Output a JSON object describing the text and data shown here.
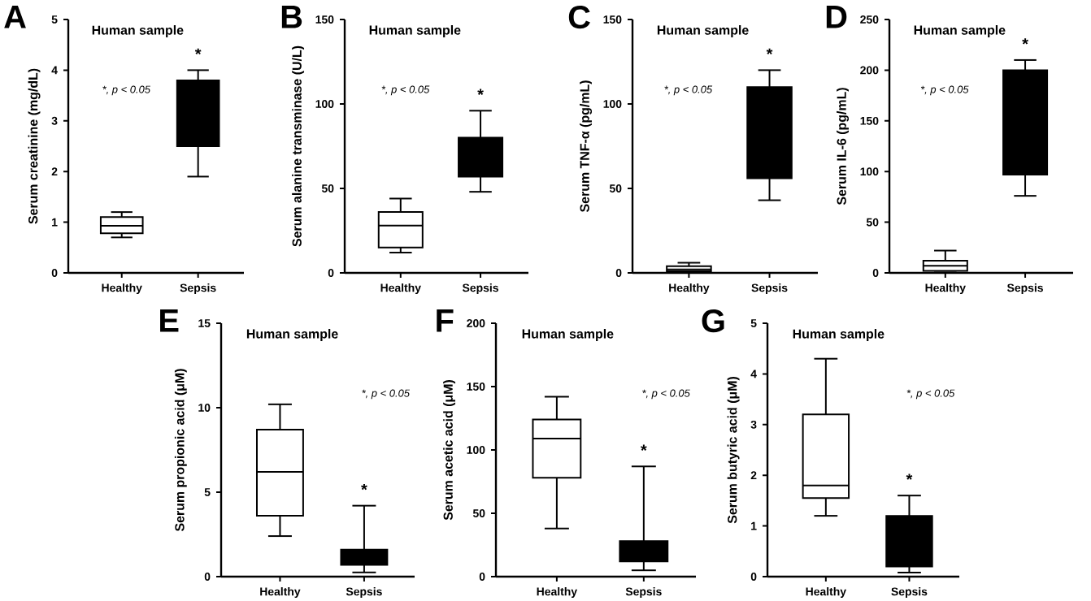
{
  "chart_data": [
    {
      "type": "box",
      "title": "A",
      "subtitle": "Human sample",
      "ylabel": "Serum creatinine (mg/dL)",
      "categories": [
        "Healthy",
        "Sepsis"
      ],
      "colors": [
        "#ffffff",
        "#000000"
      ],
      "ylim": [
        0,
        5
      ],
      "yticks": [
        0,
        1,
        2,
        3,
        4,
        5
      ],
      "boxes": [
        {
          "low": 0.7,
          "q1": 0.78,
          "median": 0.93,
          "q3": 1.1,
          "high": 1.2
        },
        {
          "low": 1.9,
          "q1": 2.5,
          "median": 3.2,
          "q3": 3.8,
          "high": 4.0
        }
      ],
      "annotations": [
        "*, p < 0.05",
        "*"
      ]
    },
    {
      "type": "box",
      "title": "B",
      "subtitle": "Human sample",
      "ylabel": "Serum alanine transminase (U/L)",
      "categories": [
        "Healthy",
        "Sepsis"
      ],
      "colors": [
        "#ffffff",
        "#000000"
      ],
      "ylim": [
        0,
        150
      ],
      "yticks": [
        0,
        50,
        100,
        150
      ],
      "boxes": [
        {
          "low": 12,
          "q1": 15,
          "median": 28,
          "q3": 36,
          "high": 44
        },
        {
          "low": 48,
          "q1": 57,
          "median": 68,
          "q3": 80,
          "high": 96
        }
      ],
      "annotations": [
        "*, p < 0.05",
        "*"
      ]
    },
    {
      "type": "box",
      "title": "C",
      "subtitle": "Human sample",
      "ylabel": "Serum TNF-α (pg/mL)",
      "categories": [
        "Healthy",
        "Sepsis"
      ],
      "colors": [
        "#ffffff",
        "#000000"
      ],
      "ylim": [
        0,
        150
      ],
      "yticks": [
        0,
        50,
        100,
        150
      ],
      "boxes": [
        {
          "low": 0,
          "q1": 1,
          "median": 2,
          "q3": 4,
          "high": 6
        },
        {
          "low": 43,
          "q1": 56,
          "median": 88,
          "q3": 110,
          "high": 120
        }
      ],
      "annotations": [
        "*, p < 0.05",
        "*"
      ]
    },
    {
      "type": "box",
      "title": "D",
      "subtitle": "Human sample",
      "ylabel": "Serum IL-6 (pg/mL)",
      "categories": [
        "Healthy",
        "Sepsis"
      ],
      "colors": [
        "#ffffff",
        "#000000"
      ],
      "ylim": [
        0,
        250
      ],
      "yticks": [
        0,
        50,
        100,
        150,
        200,
        250
      ],
      "boxes": [
        {
          "low": 2,
          "q1": 2,
          "median": 7,
          "q3": 12,
          "high": 22
        },
        {
          "low": 76,
          "q1": 97,
          "median": 155,
          "q3": 200,
          "high": 210
        }
      ],
      "annotations": [
        "*, p < 0.05",
        "*"
      ]
    },
    {
      "type": "box",
      "title": "E",
      "subtitle": "Human sample",
      "ylabel": "Serum propionic acid (μM)",
      "categories": [
        "Healthy",
        "Sepsis"
      ],
      "colors": [
        "#ffffff",
        "#000000"
      ],
      "ylim": [
        0,
        15
      ],
      "yticks": [
        0,
        5,
        10,
        15
      ],
      "boxes": [
        {
          "low": 2.4,
          "q1": 3.6,
          "median": 6.2,
          "q3": 8.7,
          "high": 10.2
        },
        {
          "low": 0.25,
          "q1": 0.7,
          "median": 1.1,
          "q3": 1.6,
          "high": 4.2
        }
      ],
      "annotations": [
        "*, p < 0.05",
        "*"
      ]
    },
    {
      "type": "box",
      "title": "F",
      "subtitle": "Human sample",
      "ylabel": "Serum acetic acid (μM)",
      "categories": [
        "Healthy",
        "Sepsis"
      ],
      "colors": [
        "#ffffff",
        "#000000"
      ],
      "ylim": [
        0,
        200
      ],
      "yticks": [
        0,
        50,
        100,
        150,
        200
      ],
      "boxes": [
        {
          "low": 38,
          "q1": 78,
          "median": 109,
          "q3": 124,
          "high": 142
        },
        {
          "low": 5,
          "q1": 12,
          "median": 20,
          "q3": 28,
          "high": 87
        }
      ],
      "annotations": [
        "*, p < 0.05",
        "*"
      ]
    },
    {
      "type": "box",
      "title": "G",
      "subtitle": "Human sample",
      "ylabel": "Serum butyric acid (μM)",
      "categories": [
        "Healthy",
        "Sepsis"
      ],
      "colors": [
        "#ffffff",
        "#000000"
      ],
      "ylim": [
        0,
        5
      ],
      "yticks": [
        0,
        1,
        2,
        3,
        4,
        5
      ],
      "boxes": [
        {
          "low": 1.2,
          "q1": 1.55,
          "median": 1.8,
          "q3": 3.2,
          "high": 4.3
        },
        {
          "low": 0.08,
          "q1": 0.2,
          "median": 0.6,
          "q3": 1.2,
          "high": 1.6
        }
      ],
      "annotations": [
        "*, p < 0.05",
        "*"
      ]
    }
  ]
}
